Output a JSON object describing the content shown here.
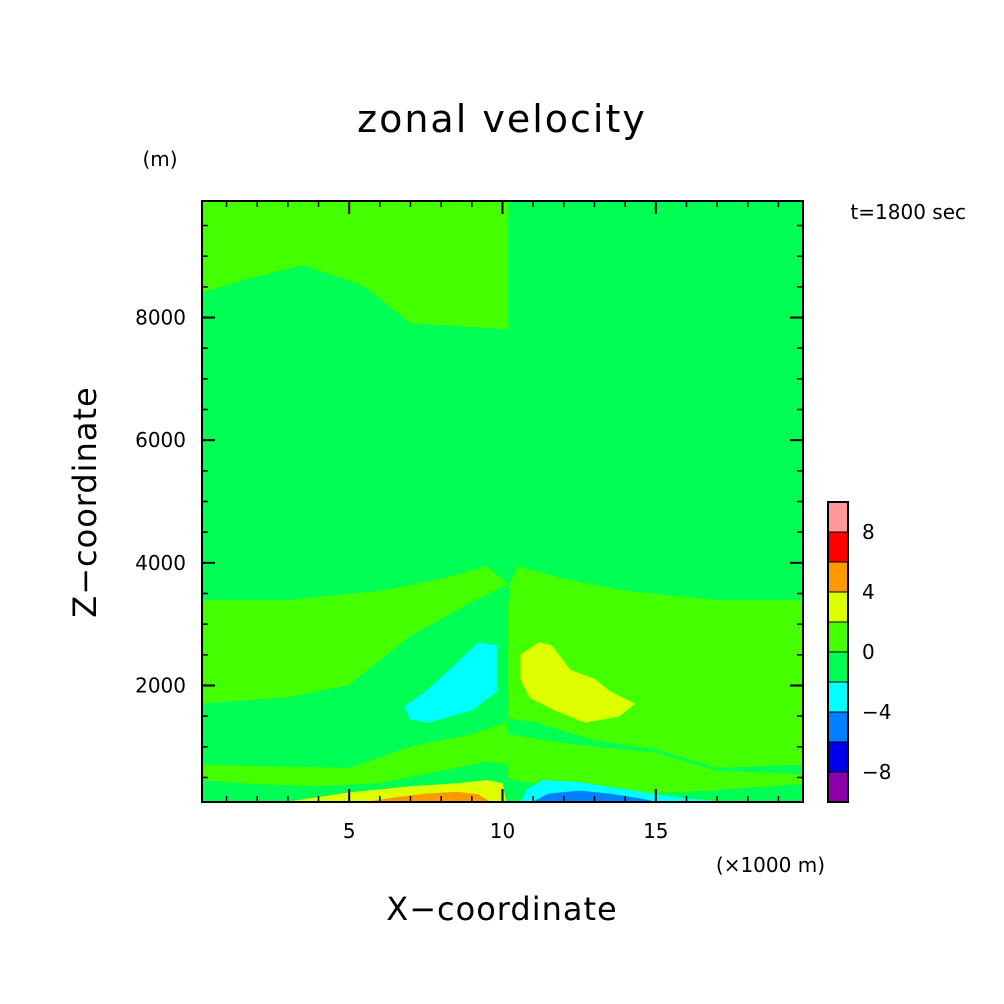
{
  "chart_data": {
    "type": "heatmap",
    "subtype": "filled-contour",
    "title": "zonal velocity",
    "xlabel": "X−coordinate",
    "ylabel": "Z−coordinate",
    "x_unit": "(×1000 m)",
    "y_unit": "(m)",
    "annotation": "t=1800 sec",
    "xlim": [
      0.2,
      19.8
    ],
    "ylim": [
      100,
      9900
    ],
    "x_ticks": [
      5,
      10,
      15
    ],
    "x_tick_labels": [
      "5",
      "10",
      "15"
    ],
    "y_ticks": [
      2000,
      4000,
      6000,
      8000
    ],
    "y_tick_labels": [
      "2000",
      "4000",
      "6000",
      "8000"
    ],
    "grid": false,
    "colorbar": {
      "levels": [
        -10,
        -8,
        -6,
        -4,
        -2,
        0,
        2,
        4,
        6,
        8,
        10
      ],
      "colors": [
        "#8b00aa",
        "#0000ee",
        "#0080ff",
        "#00ffff",
        "#00ff55",
        "#44ff00",
        "#ddff00",
        "#ff9900",
        "#ff0000",
        "#ff9999"
      ],
      "tick_values": [
        -8,
        -4,
        0,
        4,
        8
      ],
      "tick_labels": [
        "−8",
        "−4",
        "0",
        "4",
        "8"
      ]
    },
    "regions": [
      {
        "band": "0 to 2",
        "color": "#44ff00",
        "polygon": [
          [
            0.2,
            9900
          ],
          [
            19.8,
            9900
          ],
          [
            19.8,
            3400
          ],
          [
            0.2,
            3400
          ]
        ]
      },
      {
        "band": "-2 to 0",
        "color": "#00ff55",
        "polygon": [
          [
            0.2,
            8400
          ],
          [
            1.5,
            8600
          ],
          [
            3.5,
            8850
          ],
          [
            5.5,
            8500
          ],
          [
            7,
            7900
          ],
          [
            10.2,
            7800
          ],
          [
            10.2,
            6000
          ],
          [
            9.5,
            5950
          ],
          [
            8,
            6400
          ],
          [
            6,
            7000
          ],
          [
            3,
            7300
          ],
          [
            0.2,
            7600
          ]
        ]
      },
      {
        "band": "-2 to 0",
        "color": "#00ff55",
        "polygon": [
          [
            10.2,
            9900
          ],
          [
            19.8,
            9900
          ],
          [
            19.8,
            8400
          ],
          [
            18.5,
            8600
          ],
          [
            16.5,
            8850
          ],
          [
            14.5,
            8500
          ],
          [
            13,
            7900
          ],
          [
            10.2,
            7800
          ]
        ]
      },
      {
        "band": "-2 to 0",
        "color": "#00ff55",
        "polygon": [
          [
            10.2,
            7800
          ],
          [
            13,
            7900
          ],
          [
            14.5,
            8500
          ],
          [
            16.5,
            8850
          ],
          [
            18.5,
            8600
          ],
          [
            19.8,
            8400
          ],
          [
            19.8,
            7600
          ],
          [
            17,
            7300
          ],
          [
            14,
            7000
          ],
          [
            12,
            6400
          ],
          [
            10.5,
            5950
          ],
          [
            10.2,
            6000
          ]
        ]
      },
      {
        "band": "-2 to 0",
        "color": "#00ff55",
        "polygon": [
          [
            0.2,
            7600
          ],
          [
            3,
            7300
          ],
          [
            6,
            7000
          ],
          [
            8,
            6400
          ],
          [
            9.5,
            5950
          ],
          [
            10.2,
            6000
          ],
          [
            10.2,
            3650
          ],
          [
            9.5,
            3950
          ],
          [
            8,
            3750
          ],
          [
            6,
            3550
          ],
          [
            3,
            3400
          ],
          [
            0.2,
            3400
          ]
        ]
      },
      {
        "band": "-2 to 0",
        "color": "#00ff55",
        "polygon": [
          [
            10.2,
            6000
          ],
          [
            10.5,
            5950
          ],
          [
            12,
            6400
          ],
          [
            14,
            7000
          ],
          [
            17,
            7300
          ],
          [
            19.8,
            7600
          ],
          [
            19.8,
            3400
          ],
          [
            17,
            3400
          ],
          [
            14,
            3550
          ],
          [
            12,
            3750
          ],
          [
            10.5,
            3950
          ],
          [
            10.2,
            3650
          ]
        ]
      },
      {
        "band": "-2 to 0",
        "color": "#00ff55",
        "polygon": [
          [
            0.2,
            1700
          ],
          [
            3,
            1800
          ],
          [
            5,
            2000
          ],
          [
            7,
            2800
          ],
          [
            9,
            3350
          ],
          [
            10.2,
            3650
          ],
          [
            10.2,
            1400
          ],
          [
            9,
            1200
          ],
          [
            7,
            1000
          ],
          [
            5,
            650
          ],
          [
            0.2,
            700
          ]
        ]
      },
      {
        "band": "0 to 2",
        "color": "#44ff00",
        "polygon": [
          [
            0.2,
            700
          ],
          [
            5,
            650
          ],
          [
            7,
            1000
          ],
          [
            9,
            1200
          ],
          [
            10.2,
            1400
          ],
          [
            10.2,
            100
          ],
          [
            0.2,
            100
          ]
        ]
      },
      {
        "band": "-2 to 0",
        "color": "#00ff55",
        "polygon": [
          [
            0.2,
            450
          ],
          [
            2,
            380
          ],
          [
            4,
            350
          ],
          [
            6,
            400
          ],
          [
            8,
            600
          ],
          [
            9.5,
            750
          ],
          [
            10.2,
            700
          ],
          [
            10.2,
            100
          ],
          [
            0.2,
            100
          ]
        ]
      },
      {
        "band": "0 to 2",
        "color": "#44ff00",
        "polygon": [
          [
            10.2,
            3350
          ],
          [
            11,
            3400
          ],
          [
            13,
            2900
          ],
          [
            15,
            2200
          ],
          [
            17,
            1800
          ],
          [
            19.8,
            1700
          ],
          [
            19.8,
            700
          ],
          [
            17,
            650
          ],
          [
            15,
            950
          ],
          [
            13,
            1100
          ],
          [
            11,
            1400
          ],
          [
            10.2,
            1450
          ]
        ]
      },
      {
        "band": "-2 to 0",
        "color": "#00ff55",
        "polygon": [
          [
            10.2,
            1450
          ],
          [
            11,
            1400
          ],
          [
            13,
            1100
          ],
          [
            15,
            950
          ],
          [
            17,
            650
          ],
          [
            19.8,
            700
          ],
          [
            19.8,
            100
          ],
          [
            10.2,
            100
          ]
        ]
      },
      {
        "band": "0 to 2",
        "color": "#44ff00",
        "polygon": [
          [
            10.2,
            1200
          ],
          [
            12,
            1050
          ],
          [
            15,
            900
          ],
          [
            17,
            600
          ],
          [
            19.8,
            550
          ],
          [
            19.8,
            400
          ],
          [
            17,
            300
          ],
          [
            15,
            250
          ],
          [
            12,
            350
          ],
          [
            10.5,
            450
          ],
          [
            10.2,
            500
          ]
        ]
      },
      {
        "band": "-4 to -2",
        "color": "#00ffff",
        "polygon": [
          [
            6.8,
            1650
          ],
          [
            7.5,
            1900
          ],
          [
            8.6,
            2400
          ],
          [
            9.2,
            2700
          ],
          [
            9.8,
            2650
          ],
          [
            9.8,
            1900
          ],
          [
            9,
            1600
          ],
          [
            8.3,
            1500
          ],
          [
            7.6,
            1400
          ],
          [
            7,
            1450
          ]
        ]
      },
      {
        "band": "2 to 4",
        "color": "#ddff00",
        "polygon": [
          [
            10.6,
            2500
          ],
          [
            11.2,
            2700
          ],
          [
            11.6,
            2650
          ],
          [
            12.2,
            2250
          ],
          [
            13,
            2100
          ],
          [
            13.5,
            1900
          ],
          [
            14.3,
            1700
          ],
          [
            13.8,
            1500
          ],
          [
            12.7,
            1400
          ],
          [
            11.7,
            1600
          ],
          [
            10.9,
            1800
          ],
          [
            10.6,
            2100
          ]
        ]
      },
      {
        "band": "2 to 4",
        "color": "#ddff00",
        "polygon": [
          [
            3,
            100
          ],
          [
            5,
            250
          ],
          [
            7,
            350
          ],
          [
            8.5,
            400
          ],
          [
            9.5,
            450
          ],
          [
            10.0,
            400
          ],
          [
            10.1,
            100
          ]
        ]
      },
      {
        "band": "4 to 6",
        "color": "#ff9900",
        "polygon": [
          [
            5.6,
            100
          ],
          [
            6.5,
            170
          ],
          [
            7.5,
            230
          ],
          [
            8.5,
            260
          ],
          [
            9.2,
            220
          ],
          [
            9.6,
            100
          ]
        ]
      },
      {
        "band": "-4 to -2",
        "color": "#00ffff",
        "polygon": [
          [
            10.6,
            100
          ],
          [
            10.8,
            300
          ],
          [
            11.3,
            450
          ],
          [
            12.5,
            420
          ],
          [
            14,
            300
          ],
          [
            16,
            150
          ],
          [
            17.3,
            100
          ]
        ]
      },
      {
        "band": "-6 to -4",
        "color": "#0080ff",
        "polygon": [
          [
            11.0,
            100
          ],
          [
            11.5,
            230
          ],
          [
            12.5,
            280
          ],
          [
            13.5,
            230
          ],
          [
            14.5,
            150
          ],
          [
            15.0,
            100
          ]
        ]
      }
    ]
  }
}
